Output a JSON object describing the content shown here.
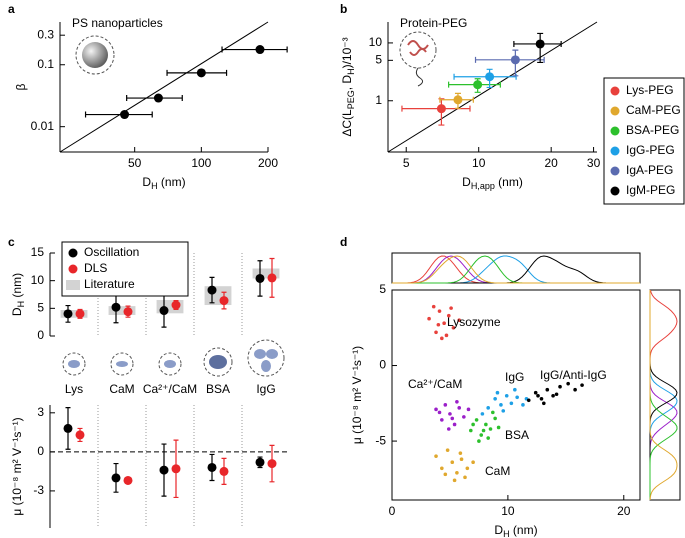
{
  "chart_data": [
    {
      "type": "scatter",
      "panel": "a",
      "annotation": "PS nanoparticles",
      "xlabel": [
        "D",
        "H",
        " (nm)"
      ],
      "ylabel": [
        "β"
      ],
      "xscale": "log",
      "yscale": "log",
      "xlim": [
        23,
        200
      ],
      "ylim": [
        0.0039,
        0.49
      ],
      "xticks": [
        50,
        100,
        200
      ],
      "yticks": [
        0.01,
        0.1,
        0.3
      ],
      "diagonal": true,
      "series": [
        {
          "color": "#000000",
          "x": [
            45,
            64,
            100,
            184
          ],
          "xerr": [
            15,
            18,
            30,
            60
          ],
          "values": [
            0.0157,
            0.029,
            0.074,
            0.176
          ]
        }
      ]
    },
    {
      "type": "scatter",
      "panel": "b",
      "annotation": "Protein-PEG",
      "xlabel": [
        "D",
        "H,app",
        " (nm)"
      ],
      "ylabel": [
        "ΔC(L",
        "PEG",
        ", D",
        "H",
        ")/10⁻³"
      ],
      "xscale": "log",
      "yscale": "log",
      "xlim": [
        4.2,
        31
      ],
      "ylim": [
        0.13,
        23
      ],
      "xticks": [
        5,
        10,
        20,
        30
      ],
      "yticks": [
        1,
        5,
        10
      ],
      "diagonal": true,
      "legend": "outside-right",
      "series": [
        {
          "name": "Lys-PEG",
          "color": "#e8413c",
          "x": [
            7.0
          ],
          "xerr": [
            2.2
          ],
          "values": [
            0.73
          ],
          "yerr": [
            0.35
          ]
        },
        {
          "name": "CaM-PEG",
          "color": "#e0a82e",
          "x": [
            8.2
          ],
          "xerr": [
            1.3
          ],
          "values": [
            1.04
          ],
          "yerr": [
            0.3
          ]
        },
        {
          "name": "BSA-PEG",
          "color": "#2cc02c",
          "x": [
            9.9
          ],
          "xerr": [
            2.4
          ],
          "values": [
            1.9
          ],
          "yerr": [
            0.5
          ]
        },
        {
          "name": "IgG-PEG",
          "color": "#1ea0e6",
          "x": [
            11.1
          ],
          "xerr": [
            3.2
          ],
          "values": [
            2.6
          ],
          "yerr": [
            0.9
          ]
        },
        {
          "name": "IgA-PEG",
          "color": "#5b6bb0",
          "x": [
            14.2
          ],
          "xerr": [
            4.5
          ],
          "values": [
            5.1
          ],
          "yerr": [
            2.4
          ]
        },
        {
          "name": "IgM-PEG",
          "color": "#000000",
          "x": [
            18
          ],
          "xerr": [
            4
          ],
          "values": [
            9.6
          ],
          "yerr": [
            5
          ]
        }
      ]
    },
    {
      "type": "errorbar",
      "panel": "c",
      "ylabel": [
        "D",
        "H",
        " (nm)"
      ],
      "ylim": [
        0,
        15
      ],
      "yticks": [
        0,
        5,
        10,
        15
      ],
      "categories": [
        "Lys",
        "CaM",
        "Ca²⁺/CaM",
        "BSA",
        "IgG"
      ],
      "separators": true,
      "legend": "upper-left",
      "series": [
        {
          "name": "Oscillation",
          "color": "#000000",
          "values": [
            4.0,
            5.2,
            4.6,
            8.3,
            10.4
          ],
          "errors": [
            1.5,
            2.8,
            3.0,
            2.3,
            3.2
          ]
        },
        {
          "name": "DLS",
          "color": "#e8262a",
          "values": [
            4.0,
            4.4,
            5.6,
            6.4,
            10.5
          ],
          "errors": [
            0.8,
            1.0,
            0.8,
            1.5,
            3.5
          ]
        },
        {
          "name": "Literature",
          "color": "#d3d3d3",
          "style": "band",
          "values": [
            4.0,
            4.6,
            5.3,
            7.3,
            11.3
          ],
          "errors": [
            0.7,
            0.8,
            1.2,
            1.7,
            0.9
          ]
        }
      ]
    },
    {
      "type": "errorbar",
      "ylabel": [
        "μ (10⁻⁸ m² V⁻¹s⁻¹)"
      ],
      "ylim": [
        -5.85,
        3.6
      ],
      "yticks": [
        -3,
        0,
        3
      ],
      "separators": true,
      "zero_line": true,
      "series": [
        {
          "color": "#000000",
          "values": [
            1.8,
            -2.0,
            -1.4,
            -1.2,
            -0.8
          ],
          "errors": [
            1.6,
            1.1,
            2.0,
            1.0,
            0.4
          ]
        },
        {
          "color": "#e8262a",
          "values": [
            1.3,
            -2.2,
            -1.3,
            -1.5,
            -0.9
          ],
          "errors": [
            0.5,
            0.2,
            2.2,
            1.0,
            1.4
          ]
        }
      ]
    },
    {
      "type": "scatter",
      "panel": "d",
      "xlabel": [
        "D",
        "H",
        " (nm)"
      ],
      "ylabel": [
        "μ (10⁻⁸ m² V⁻¹s⁻¹)"
      ],
      "xlim": [
        0,
        21.4
      ],
      "ylim": [
        -8.9,
        5
      ],
      "xticks": [
        0,
        10,
        20
      ],
      "yticks": [
        -5,
        0,
        5
      ],
      "frame": true,
      "inline_labels": true,
      "marginals": true,
      "series": [
        {
          "name": "Lysozyme",
          "color": "#e8413c",
          "x": [
            3.2,
            3.8,
            4.1,
            4.5,
            4.9,
            5.3,
            4.3,
            5.8,
            3.6,
            4.7,
            5.1,
            4.0
          ],
          "values": [
            3.1,
            2.2,
            3.6,
            2.8,
            3.3,
            2.5,
            1.8,
            3.0,
            3.9,
            2.0,
            3.8,
            2.7
          ]
        },
        {
          "name": "Ca²⁺/CaM",
          "color": "#9b1fc9",
          "x": [
            3.8,
            4.3,
            4.6,
            5.0,
            5.4,
            5.8,
            4.9,
            6.2,
            4.1,
            5.6,
            6.6,
            5.2
          ],
          "values": [
            -2.9,
            -3.6,
            -2.6,
            -3.2,
            -3.9,
            -2.8,
            -4.2,
            -3.4,
            -3.1,
            -2.4,
            -2.9,
            -3.5
          ]
        },
        {
          "name": "IgG",
          "color": "#1ea0e6",
          "x": [
            8.3,
            8.9,
            9.4,
            9.9,
            10.3,
            10.8,
            11.3,
            9.6,
            7.8,
            10.6,
            11.6,
            9.1
          ],
          "values": [
            -2.8,
            -2.2,
            -2.6,
            -2.0,
            -2.5,
            -2.1,
            -2.6,
            -3.0,
            -3.2,
            -1.6,
            -2.2,
            -1.8
          ]
        },
        {
          "name": "IgG/Anti-IgG",
          "color": "#000000",
          "x": [
            11.8,
            12.4,
            12.9,
            13.4,
            13.9,
            14.5,
            15.2,
            13.1,
            14.2,
            15.8,
            12.6,
            16.4
          ],
          "values": [
            -2.3,
            -1.8,
            -2.2,
            -1.6,
            -2.0,
            -1.4,
            -1.2,
            -2.5,
            -1.9,
            -1.6,
            -2.0,
            -1.3
          ]
        },
        {
          "name": "BSA",
          "color": "#2cc02c",
          "x": [
            6.8,
            7.3,
            7.7,
            8.1,
            8.5,
            8.9,
            7.5,
            8.3,
            9.2,
            7.0,
            8.7,
            7.9
          ],
          "values": [
            -4.3,
            -3.6,
            -4.6,
            -3.9,
            -4.2,
            -3.5,
            -5.0,
            -4.8,
            -4.1,
            -3.9,
            -3.1,
            -4.3
          ]
        },
        {
          "name": "CaM",
          "color": "#e0a82e",
          "x": [
            3.8,
            4.3,
            4.8,
            5.2,
            5.6,
            6.0,
            6.5,
            5.4,
            4.6,
            7.0,
            5.9,
            6.3
          ],
          "values": [
            -6.0,
            -6.8,
            -5.6,
            -6.4,
            -7.1,
            -6.2,
            -6.8,
            -7.6,
            -7.2,
            -6.4,
            -5.8,
            -7.4
          ]
        }
      ]
    }
  ]
}
